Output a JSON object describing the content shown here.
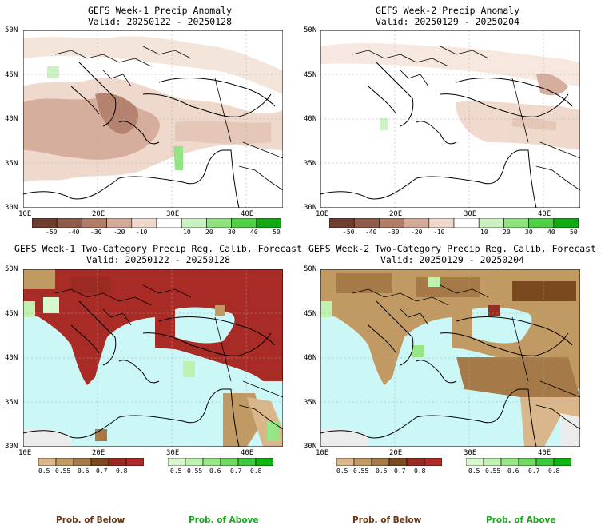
{
  "panels": [
    {
      "title_line1": "GEFS Week-1 Precip Anomaly",
      "title_line2": "Valid: 20250122 - 20250128"
    },
    {
      "title_line1": "GEFS Week-2 Precip Anomaly",
      "title_line2": "Valid: 20250129 - 20250204"
    },
    {
      "title_line1": "GEFS Week-1 Two-Category Precip Reg. Calib. Forecast",
      "title_line2": "Valid: 20250122 - 20250128"
    },
    {
      "title_line1": "GEFS Week-2 Two-Category Precip Reg. Calib. Forecast",
      "title_line2": "Valid: 20250129 - 20250204"
    }
  ],
  "lat_labels": [
    "50N",
    "45N",
    "40N",
    "35N",
    "30N"
  ],
  "lon_labels": [
    "10E",
    "20E",
    "30E",
    "40E"
  ],
  "anomaly_colorbar": {
    "labels": [
      "-50",
      "-40",
      "-30",
      "-20",
      "-10",
      "10",
      "20",
      "30",
      "40",
      "50"
    ],
    "colors": [
      "#6e3f2e",
      "#8f5c49",
      "#b07c68",
      "#d3aa98",
      "#efd8cb",
      "#ffffff",
      "#c9f2c0",
      "#8fe37f",
      "#4fcf45",
      "#12a812"
    ]
  },
  "below_colorbar": {
    "labels": [
      "0.5",
      "0.55",
      "0.6",
      "0.7",
      "0.8"
    ],
    "colors": [
      "#d9b78a",
      "#c19a63",
      "#a57a48",
      "#7a4a1e",
      "#9a2a22",
      "#ad2b28"
    ]
  },
  "above_colorbar": {
    "labels": [
      "0.5",
      "0.55",
      "0.6",
      "0.7",
      "0.8"
    ],
    "colors": [
      "#d9f7cf",
      "#bff1b0",
      "#96e685",
      "#6ed95f",
      "#3cc83c",
      "#10b410"
    ]
  },
  "footer": {
    "below_label": "Prob. of Below",
    "above_label": "Prob. of Above"
  },
  "colors": {
    "sea": "#ccf7f7",
    "below_text": "#6b3414",
    "above_text": "#1aa81a",
    "land_clim": "#ececec"
  }
}
